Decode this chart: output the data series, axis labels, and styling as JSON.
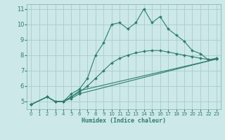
{
  "background_color": "#cce8e8",
  "grid_color": "#aacccc",
  "line_color": "#2e7d6e",
  "xlabel": "Humidex (Indice chaleur)",
  "xlim": [
    -0.5,
    23.5
  ],
  "ylim": [
    4.5,
    11.3
  ],
  "yticks": [
    5,
    6,
    7,
    8,
    9,
    10,
    11
  ],
  "xticks": [
    0,
    1,
    2,
    3,
    4,
    5,
    6,
    7,
    8,
    9,
    10,
    11,
    12,
    13,
    14,
    15,
    16,
    17,
    18,
    19,
    20,
    21,
    22,
    23
  ],
  "series": [
    {
      "x": [
        0,
        2,
        3,
        4,
        5,
        6,
        7,
        8,
        9,
        10,
        11,
        12,
        13,
        14,
        15,
        16,
        17,
        18,
        19,
        20,
        21,
        22,
        23
      ],
      "y": [
        4.8,
        5.3,
        5.0,
        5.0,
        5.5,
        5.8,
        6.5,
        8.0,
        8.8,
        10.0,
        10.1,
        9.7,
        10.1,
        11.0,
        10.1,
        10.5,
        9.7,
        9.3,
        8.9,
        8.3,
        8.1,
        7.7,
        7.8
      ]
    },
    {
      "x": [
        0,
        2,
        3,
        4,
        5,
        6,
        7,
        8,
        9,
        10,
        11,
        12,
        13,
        14,
        15,
        16,
        17,
        18,
        19,
        20,
        21,
        22,
        23
      ],
      "y": [
        4.8,
        5.3,
        5.0,
        5.0,
        5.3,
        5.6,
        6.0,
        6.5,
        7.0,
        7.5,
        7.8,
        8.0,
        8.15,
        8.25,
        8.3,
        8.3,
        8.2,
        8.1,
        8.0,
        7.9,
        7.8,
        7.72,
        7.75
      ]
    },
    {
      "x": [
        0,
        2,
        3,
        4,
        5,
        6,
        23
      ],
      "y": [
        4.8,
        5.3,
        5.0,
        5.0,
        5.2,
        5.5,
        7.75
      ]
    },
    {
      "x": [
        0,
        2,
        3,
        4,
        5,
        6,
        23
      ],
      "y": [
        4.8,
        5.3,
        5.0,
        5.0,
        5.3,
        5.7,
        7.75
      ]
    }
  ]
}
